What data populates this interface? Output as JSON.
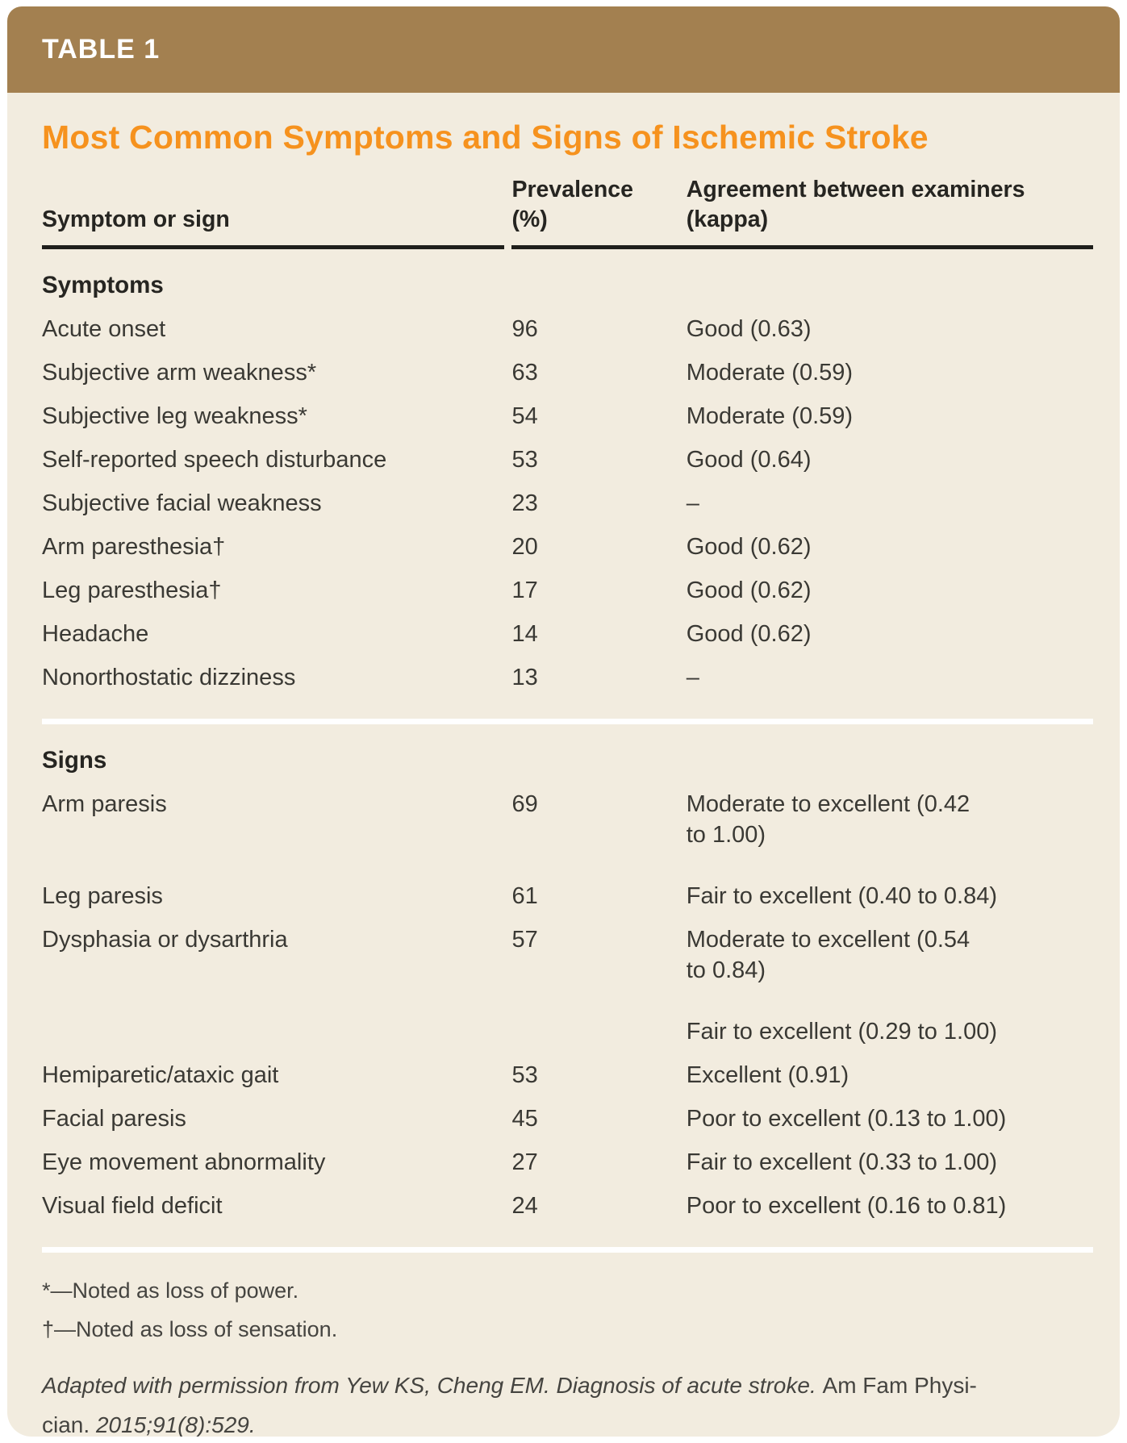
{
  "table_tag": "TABLE 1",
  "title": "Most Common Symptoms and Signs of Ischemic Stroke",
  "columns": {
    "symptom": "Symptom or sign",
    "prevalence": [
      "Prevalence",
      "(%)"
    ],
    "agreement": [
      "Agreement between examiners",
      "(kappa)"
    ]
  },
  "sections": [
    {
      "heading": "Symptoms",
      "rows": [
        {
          "symptom": "Acute onset",
          "prevalence": "96",
          "agreement": "Good (0.63)"
        },
        {
          "symptom": "Subjective arm weakness*",
          "prevalence": "63",
          "agreement": "Moderate (0.59)"
        },
        {
          "symptom": "Subjective leg weakness*",
          "prevalence": "54",
          "agreement": "Moderate (0.59)"
        },
        {
          "symptom": "Self-reported speech disturbance",
          "prevalence": "53",
          "agreement": "Good (0.64)"
        },
        {
          "symptom": "Subjective facial weakness",
          "prevalence": "23",
          "agreement": "–"
        },
        {
          "symptom": "Arm paresthesia†",
          "prevalence": "20",
          "agreement": "Good (0.62)"
        },
        {
          "symptom": "Leg paresthesia†",
          "prevalence": "17",
          "agreement": "Good (0.62)"
        },
        {
          "symptom": "Headache",
          "prevalence": "14",
          "agreement": "Good (0.62)"
        },
        {
          "symptom": "Nonorthostatic dizziness",
          "prevalence": "13",
          "agreement": "–"
        }
      ]
    },
    {
      "heading": "Signs",
      "rows": [
        {
          "symptom": "Arm paresis",
          "prevalence": "69",
          "agreement": "Moderate to excellent (0.42\nto 1.00)"
        },
        {
          "symptom": "Leg paresis",
          "prevalence": "61",
          "agreement": "Fair to excellent (0.40 to 0.84)"
        },
        {
          "symptom": "Dysphasia or dysarthria",
          "prevalence": "57",
          "agreement": "Moderate to excellent (0.54\nto 0.84)"
        },
        {
          "symptom": "",
          "prevalence": "",
          "agreement": "Fair to excellent (0.29 to 1.00)"
        },
        {
          "symptom": "Hemiparetic/ataxic gait",
          "prevalence": "53",
          "agreement": "Excellent (0.91)"
        },
        {
          "symptom": "Facial paresis",
          "prevalence": "45",
          "agreement": "Poor to excellent (0.13 to 1.00)"
        },
        {
          "symptom": "Eye movement abnormality",
          "prevalence": "27",
          "agreement": "Fair to excellent (0.33 to 1.00)"
        },
        {
          "symptom": "Visual field deficit",
          "prevalence": "24",
          "agreement": "Poor to excellent (0.16 to 0.81)"
        }
      ]
    }
  ],
  "footnotes": [
    "*—Noted as loss of power.",
    "†—Noted as loss of sensation."
  ],
  "citation": {
    "italic_part1": "Adapted with permission from Yew KS, Cheng EM. Diagnosis of acute stroke. ",
    "roman_part": "Am Fam Physi-\ncian. ",
    "italic_part2": "2015;91(8):529."
  },
  "colors": {
    "header_bar_brown": "#a38050",
    "title_orange": "#f6921e",
    "card_background": "#f2ecdf",
    "body_text": "#3a3934",
    "heading_text": "#262521",
    "header_rule_dark": "#1f1f1b",
    "section_divider_white": "#ffffff",
    "table_tag_text": "#ffffff"
  }
}
